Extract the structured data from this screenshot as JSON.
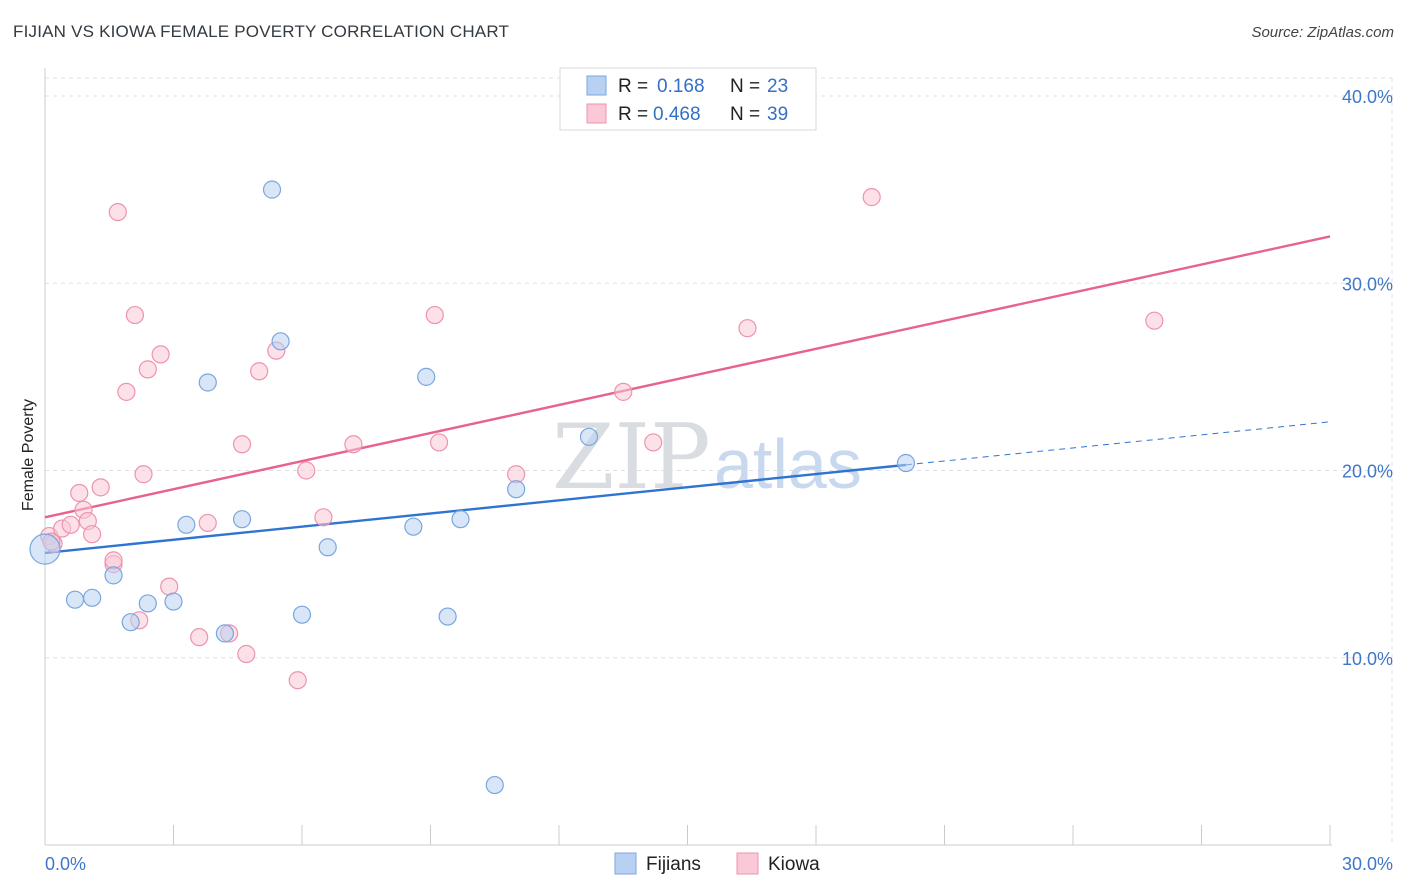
{
  "header": {
    "title": "FIJIAN VS KIOWA FEMALE POVERTY CORRELATION CHART",
    "source": "Source: ZipAtlas.com"
  },
  "watermark": {
    "zip": "ZIP",
    "atlas": "atlas"
  },
  "legend": {
    "r_label": "R =",
    "n_label": "N =",
    "items": [
      {
        "name": "Fijians",
        "r": "0.168",
        "n": "23",
        "fill": "#b8d1f3",
        "stroke": "#7aa6de"
      },
      {
        "name": "Kiowa",
        "r": "0.468",
        "n": "39",
        "fill": "#fac8d6",
        "stroke": "#ee93ae"
      }
    ]
  },
  "colors": {
    "fijians_line": "#2f74d0",
    "kiowa_line": "#e8628e",
    "grid": "#dde1e6",
    "axis": "#c8ccd1"
  },
  "chart_data": {
    "type": "scatter",
    "title": "FIJIAN VS KIOWA FEMALE POVERTY CORRELATION CHART",
    "xlabel": "",
    "ylabel": "Female Poverty",
    "xlim": [
      0,
      30
    ],
    "ylim": [
      0,
      40
    ],
    "x_tick_labels": [
      "0.0%",
      "30.0%"
    ],
    "y_ticks": [
      10,
      20,
      30,
      40
    ],
    "y_tick_labels": [
      "10.0%",
      "20.0%",
      "30.0%",
      "40.0%"
    ],
    "series": [
      {
        "name": "Fijians",
        "points": [
          [
            0.0,
            15.8
          ],
          [
            0.7,
            13.1
          ],
          [
            1.1,
            13.2
          ],
          [
            1.6,
            14.4
          ],
          [
            2.0,
            11.9
          ],
          [
            2.4,
            12.9
          ],
          [
            3.0,
            13.0
          ],
          [
            3.3,
            17.1
          ],
          [
            3.8,
            24.7
          ],
          [
            4.2,
            11.3
          ],
          [
            4.6,
            17.4
          ],
          [
            5.3,
            35.0
          ],
          [
            5.5,
            26.9
          ],
          [
            6.0,
            12.3
          ],
          [
            6.6,
            15.9
          ],
          [
            8.6,
            17.0
          ],
          [
            8.9,
            25.0
          ],
          [
            9.4,
            12.2
          ],
          [
            9.7,
            17.4
          ],
          [
            10.5,
            3.2
          ],
          [
            11.0,
            19.0
          ],
          [
            12.7,
            21.8
          ],
          [
            20.1,
            20.4
          ]
        ],
        "trend": [
          [
            0,
            15.6
          ],
          [
            20.1,
            20.3
          ]
        ],
        "trend_extension": [
          [
            20.1,
            20.3
          ],
          [
            30,
            22.6
          ]
        ]
      },
      {
        "name": "Kiowa",
        "points": [
          [
            0.1,
            16.5
          ],
          [
            0.2,
            16.1
          ],
          [
            0.4,
            16.9
          ],
          [
            0.6,
            17.1
          ],
          [
            0.8,
            18.8
          ],
          [
            0.9,
            17.9
          ],
          [
            1.0,
            17.3
          ],
          [
            1.1,
            16.6
          ],
          [
            1.3,
            19.1
          ],
          [
            1.6,
            15.0
          ],
          [
            1.6,
            15.2
          ],
          [
            1.7,
            33.8
          ],
          [
            1.9,
            24.2
          ],
          [
            2.1,
            28.3
          ],
          [
            2.2,
            12.0
          ],
          [
            2.3,
            19.8
          ],
          [
            2.4,
            25.4
          ],
          [
            2.7,
            26.2
          ],
          [
            2.9,
            13.8
          ],
          [
            3.6,
            11.1
          ],
          [
            3.8,
            17.2
          ],
          [
            4.3,
            11.3
          ],
          [
            4.6,
            21.4
          ],
          [
            4.7,
            10.2
          ],
          [
            5.0,
            25.3
          ],
          [
            5.4,
            26.4
          ],
          [
            5.9,
            8.8
          ],
          [
            6.1,
            20.0
          ],
          [
            6.5,
            17.5
          ],
          [
            7.2,
            21.4
          ],
          [
            9.1,
            28.3
          ],
          [
            9.2,
            21.5
          ],
          [
            11.0,
            19.8
          ],
          [
            13.5,
            24.2
          ],
          [
            14.2,
            21.5
          ],
          [
            16.4,
            27.6
          ],
          [
            19.3,
            34.6
          ],
          [
            25.9,
            28.0
          ],
          [
            0.15,
            16.2
          ]
        ],
        "trend": [
          [
            0,
            17.5
          ],
          [
            30,
            32.5
          ]
        ]
      }
    ]
  },
  "bottom_legend": [
    "Fijians",
    "Kiowa"
  ]
}
